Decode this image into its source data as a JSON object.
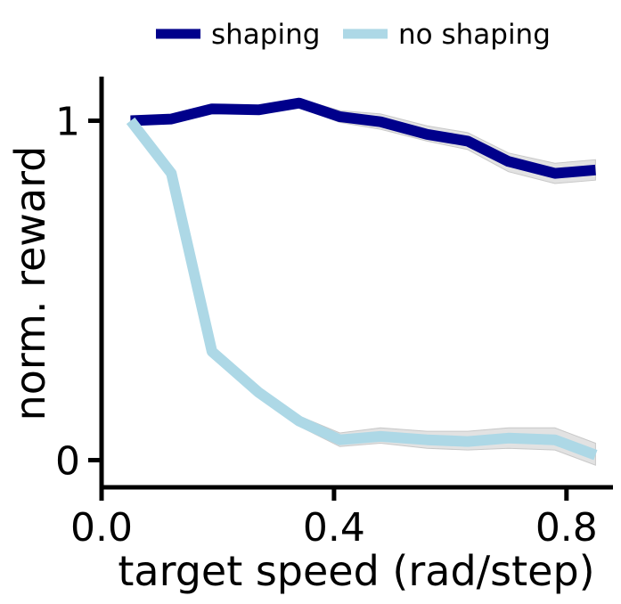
{
  "chart_data": {
    "type": "line",
    "xlabel": "target speed (rad/step)",
    "ylabel": "norm. reward",
    "xlim": [
      0.0,
      0.88
    ],
    "ylim": [
      -0.08,
      1.13
    ],
    "xticks": [
      {
        "value": 0.0,
        "label": "0.0"
      },
      {
        "value": 0.4,
        "label": "0.4"
      },
      {
        "value": 0.8,
        "label": "0.8"
      }
    ],
    "yticks": [
      {
        "value": 0.0,
        "label": "0"
      },
      {
        "value": 1.0,
        "label": "1"
      }
    ],
    "grid": false,
    "legend_position": "top-center",
    "x": [
      0.05,
      0.12,
      0.19,
      0.27,
      0.34,
      0.41,
      0.48,
      0.56,
      0.63,
      0.7,
      0.78,
      0.85
    ],
    "series": [
      {
        "name": "shaping",
        "color": "#00008b",
        "values": [
          1.0,
          1.005,
          1.035,
          1.032,
          1.052,
          1.012,
          0.997,
          0.96,
          0.94,
          0.88,
          0.845,
          0.855
        ],
        "band_low": [
          0.995,
          0.998,
          1.025,
          1.02,
          1.04,
          0.995,
          0.975,
          0.94,
          0.915,
          0.85,
          0.815,
          0.825
        ],
        "band_high": [
          1.005,
          1.012,
          1.045,
          1.045,
          1.065,
          1.03,
          1.02,
          0.985,
          0.965,
          0.905,
          0.875,
          0.885
        ]
      },
      {
        "name": "no shaping",
        "color": "#add8e6",
        "values": [
          1.0,
          0.845,
          0.32,
          0.2,
          0.115,
          0.06,
          0.07,
          0.06,
          0.055,
          0.065,
          0.06,
          0.015
        ],
        "band_low": [
          0.99,
          0.83,
          0.31,
          0.185,
          0.1,
          0.04,
          0.05,
          0.035,
          0.03,
          0.035,
          0.03,
          -0.015
        ],
        "band_high": [
          1.01,
          0.86,
          0.335,
          0.215,
          0.13,
          0.08,
          0.095,
          0.085,
          0.085,
          0.095,
          0.095,
          0.05
        ]
      }
    ],
    "band_color": "#d3d3d3"
  }
}
